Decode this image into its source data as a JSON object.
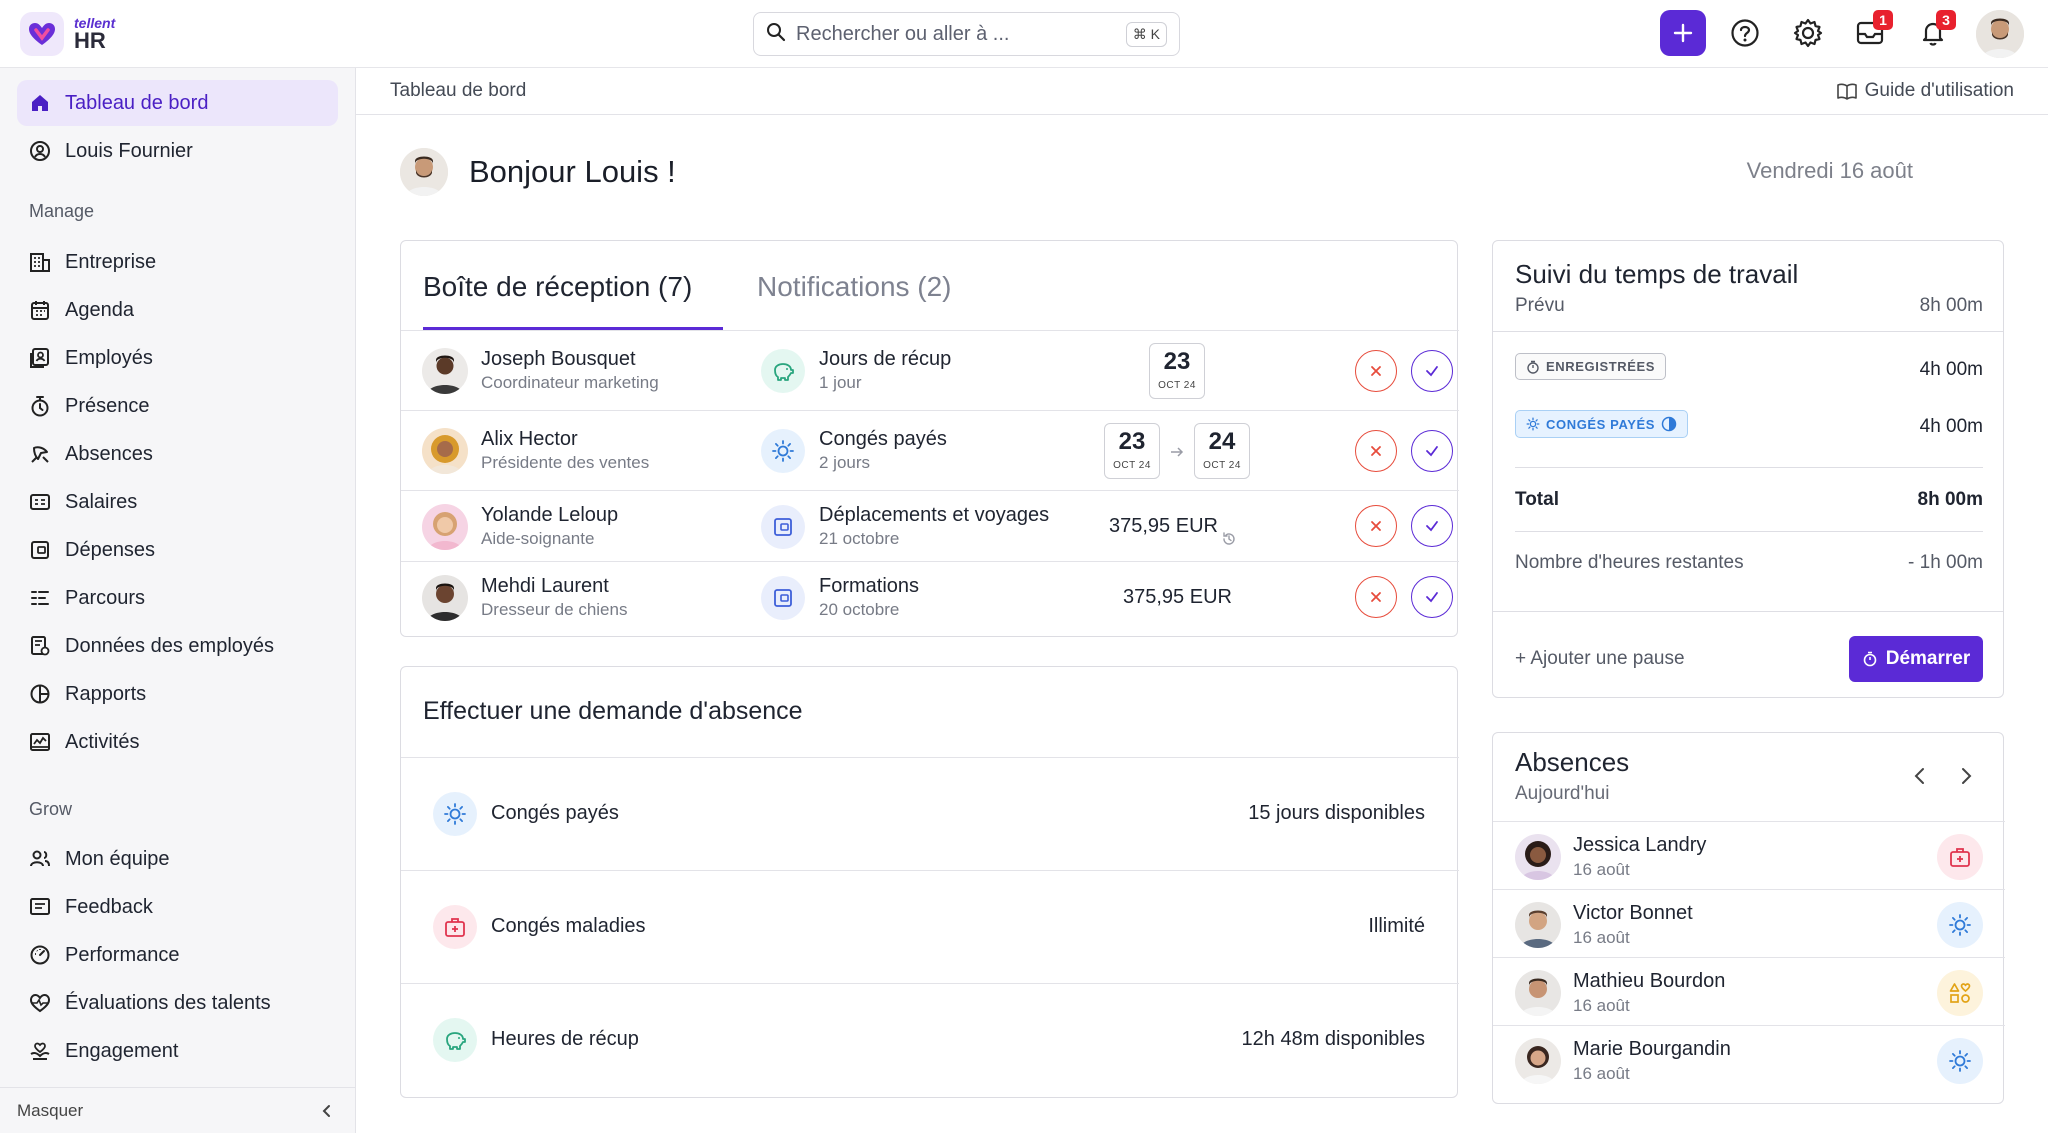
{
  "brand": {
    "small": "tellent",
    "big": "HR"
  },
  "search": {
    "placeholder": "Rechercher ou aller à ...",
    "shortcut": "⌘ K"
  },
  "topbar": {
    "inbox_badge": "1",
    "notif_badge": "3"
  },
  "sidebar": {
    "top_items": [
      {
        "label": "Tableau de bord",
        "icon": "home-icon"
      },
      {
        "label": "Louis Fournier",
        "icon": "user-circle-icon"
      }
    ],
    "manage_label": "Manage",
    "manage_items": [
      {
        "label": "Entreprise",
        "icon": "building-icon"
      },
      {
        "label": "Agenda",
        "icon": "calendar-icon"
      },
      {
        "label": "Employés",
        "icon": "id-badge-icon"
      },
      {
        "label": "Présence",
        "icon": "stopwatch-icon"
      },
      {
        "label": "Absences",
        "icon": "plane-icon"
      },
      {
        "label": "Salaires",
        "icon": "payslip-icon"
      },
      {
        "label": "Dépenses",
        "icon": "wallet-icon"
      },
      {
        "label": "Parcours",
        "icon": "route-icon"
      },
      {
        "label": "Données des employés",
        "icon": "data-icon"
      },
      {
        "label": "Rapports",
        "icon": "pie-icon"
      },
      {
        "label": "Activités",
        "icon": "activity-icon"
      }
    ],
    "grow_label": "Grow",
    "grow_items": [
      {
        "label": "Mon équipe",
        "icon": "team-icon"
      },
      {
        "label": "Feedback",
        "icon": "feedback-icon"
      },
      {
        "label": "Performance",
        "icon": "gauge-icon"
      },
      {
        "label": "Évaluations des talents",
        "icon": "heart-pulse-icon"
      },
      {
        "label": "Engagement",
        "icon": "hand-heart-icon"
      }
    ],
    "collapse_label": "Masquer"
  },
  "main": {
    "breadcrumb": "Tableau de bord",
    "guide_label": "Guide d'utilisation",
    "greeting": "Bonjour Louis !",
    "date": "Vendredi 16 août"
  },
  "inbox": {
    "tab_inbox": "Boîte de réception (7)",
    "tab_notifications": "Notifications (2)",
    "rows": [
      {
        "name": "Joseph Bousquet",
        "role": "Coordinateur marketing",
        "type": "Jours de récup",
        "detail": "1 jour",
        "date1_day": "23",
        "date1_month": "OCT 24"
      },
      {
        "name": "Alix Hector",
        "role": "Présidente des ventes",
        "type": "Congés payés",
        "detail": "2 jours",
        "date1_day": "23",
        "date1_month": "OCT 24",
        "date2_day": "24",
        "date2_month": "OCT 24"
      },
      {
        "name": "Yolande Leloup",
        "role": "Aide-soignante",
        "type": "Déplacements et voyages",
        "detail": "21 octobre",
        "amount": "375,95 EUR"
      },
      {
        "name": "Mehdi Laurent",
        "role": "Dresseur de chiens",
        "type": "Formations",
        "detail": "20 octobre",
        "amount": "375,95 EUR"
      }
    ]
  },
  "absence_request": {
    "title": "Effectuer une demande d'absence",
    "rows": [
      {
        "label": "Congés payés",
        "value": "15 jours disponibles"
      },
      {
        "label": "Congés maladies",
        "value": "Illimité"
      },
      {
        "label": "Heures de récup",
        "value": "12h 48m disponibles"
      }
    ]
  },
  "time_tracking": {
    "title": "Suivi du temps de travail",
    "planned_label": "Prévu",
    "planned_value": "8h 00m",
    "recorded_label": "ENREGISTRÉES",
    "recorded_value": "4h 00m",
    "paid_label": "CONGÉS PAYÉS",
    "paid_value": "4h 00m",
    "total_label": "Total",
    "total_value": "8h 00m",
    "remaining_label": "Nombre d'heures restantes",
    "remaining_value": "- 1h 00m",
    "add_break": "+ Ajouter une pause",
    "start_button": "Démarrer"
  },
  "absences": {
    "title": "Absences",
    "subtitle": "Aujourd'hui",
    "rows": [
      {
        "name": "Jessica Landry",
        "date": "16 août",
        "icon": "medical-icon"
      },
      {
        "name": "Victor Bonnet",
        "date": "16 août",
        "icon": "sun-icon"
      },
      {
        "name": "Mathieu Bourdon",
        "date": "16 août",
        "icon": "shapes-icon"
      },
      {
        "name": "Marie Bourgandin",
        "date": "16 août",
        "icon": "sun-icon"
      }
    ]
  },
  "colors": {
    "accent": "#5b2ad6",
    "reject": "#e74c3c",
    "badge": "#e8212e",
    "sun": "#2f7ad8"
  }
}
